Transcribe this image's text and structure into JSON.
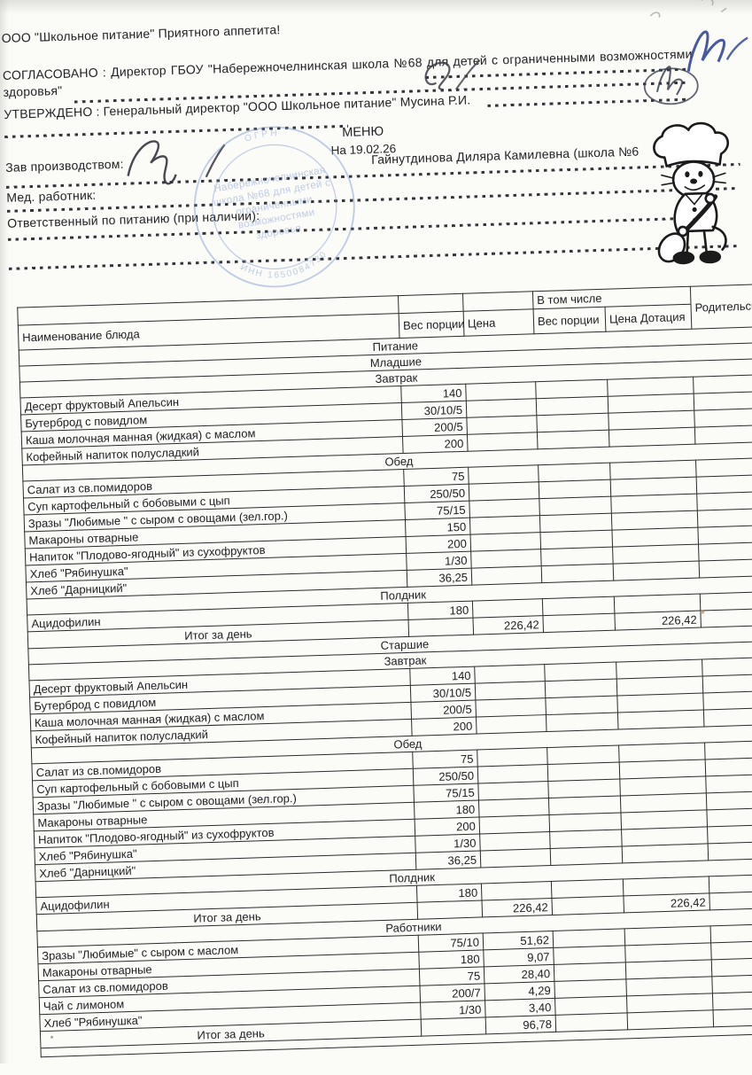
{
  "document": {
    "company_line": "ООО \"Школьное питание\" Приятного аппетита!",
    "agreed_line": "СОГЛАСОВАНО : Директор ГБОУ \"Набережночелнинская школа №68 для детей с ограниченными возможностями здоровья\"",
    "approved_line": "УТВЕРЖДЕНО : Генеральный директор \"ООО Школьное питание\" Мусина Р.И.",
    "menu_title": "МЕНЮ",
    "menu_date": "На 19.02.26",
    "production_manager_label": "Зав производством:",
    "production_manager_name": "Гайнутдинова Диляра Камилевна (школа №6",
    "med_worker_label": "Мед. работник:",
    "responsible_label": "Ответственный по питанию (при наличии):"
  },
  "stamp": {
    "center_lines": [
      "Набережночелнинская",
      "школа №68 для детей с",
      "ограниченными",
      "возможностями",
      "здоровья"
    ],
    "arc_top": "ОГРН",
    "arc_bottom": "ИНН 1650084730",
    "color": "#7d9ad0"
  },
  "colors": {
    "ink_blue": "#32479b",
    "pencil": "#3a3a42"
  },
  "table": {
    "headers": {
      "name": "Наименование блюда",
      "portion": "Вес порции",
      "price": "Цена",
      "including": "В том числе",
      "portion2": "Вес порции",
      "subsidy": "Цена Дотация",
      "parent_fee": "Родительская плата"
    },
    "rows": [
      {
        "type": "section",
        "label": "Питание"
      },
      {
        "type": "section",
        "label": "Младшие"
      },
      {
        "type": "section",
        "label": "Завтрак"
      },
      {
        "type": "dish",
        "name": "Десерт фруктовый Апельсин",
        "weight": "140",
        "price": "",
        "weight2": "",
        "subsidy": "",
        "fee": ""
      },
      {
        "type": "dish",
        "name": "Бутерброд с повидлом",
        "weight": "30/10/5",
        "price": "",
        "weight2": "",
        "subsidy": "",
        "fee": ""
      },
      {
        "type": "dish",
        "name": "Каша молочная манная (жидкая) с маслом",
        "weight": "200/5",
        "price": "",
        "weight2": "",
        "subsidy": "",
        "fee": ""
      },
      {
        "type": "dish",
        "name": "Кофейный напиток полусладкий",
        "weight": "200",
        "price": "",
        "weight2": "",
        "subsidy": "",
        "fee": ""
      },
      {
        "type": "section",
        "label": "Обед"
      },
      {
        "type": "dish",
        "name": "Салат из св.помидоров",
        "weight": "75",
        "price": "",
        "weight2": "",
        "subsidy": "",
        "fee": ""
      },
      {
        "type": "dish",
        "name": "Суп картофельный с бобовыми с цып",
        "weight": "250/50",
        "price": "",
        "weight2": "",
        "subsidy": "",
        "fee": ""
      },
      {
        "type": "dish",
        "name": "Зразы \"Любимые \" с сыром с овощами (зел.гор.)",
        "weight": "75/15",
        "price": "",
        "weight2": "",
        "subsidy": "",
        "fee": ""
      },
      {
        "type": "dish",
        "name": "Макароны отварные",
        "weight": "150",
        "price": "",
        "weight2": "",
        "subsidy": "",
        "fee": ""
      },
      {
        "type": "dish",
        "name": "Напиток \"Плодово-ягодный\" из сухофруктов",
        "weight": "200",
        "price": "",
        "weight2": "",
        "subsidy": "",
        "fee": ""
      },
      {
        "type": "dish",
        "name": "Хлеб \"Рябинушка\"",
        "weight": "1/30",
        "price": "",
        "weight2": "",
        "subsidy": "",
        "fee": ""
      },
      {
        "type": "dish",
        "name": "Хлеб \"Дарницкий\"",
        "weight": "36,25",
        "price": "",
        "weight2": "",
        "subsidy": "",
        "fee": ""
      },
      {
        "type": "section",
        "label": "Полдник"
      },
      {
        "type": "dish",
        "name": "Ацидофилин",
        "weight": "180",
        "price": "",
        "weight2": "",
        "subsidy": "",
        "fee": ""
      },
      {
        "type": "total",
        "name": "Итог за день",
        "weight": "",
        "price": "226,42",
        "weight2": "",
        "subsidy": "226,42",
        "fee": ""
      },
      {
        "type": "section",
        "label": "Старшие"
      },
      {
        "type": "section",
        "label": "Завтрак"
      },
      {
        "type": "dish",
        "name": "Десерт фруктовый Апельсин",
        "weight": "140",
        "price": "",
        "weight2": "",
        "subsidy": "",
        "fee": ""
      },
      {
        "type": "dish",
        "name": "Бутерброд с повидлом",
        "weight": "30/10/5",
        "price": "",
        "weight2": "",
        "subsidy": "",
        "fee": ""
      },
      {
        "type": "dish",
        "name": "Каша молочная манная (жидкая) с маслом",
        "weight": "200/5",
        "price": "",
        "weight2": "",
        "subsidy": "",
        "fee": ""
      },
      {
        "type": "dish",
        "name": "Кофейный напиток полусладкий",
        "weight": "200",
        "price": "",
        "weight2": "",
        "subsidy": "",
        "fee": ""
      },
      {
        "type": "section",
        "label": "Обед"
      },
      {
        "type": "dish",
        "name": "Салат из св.помидоров",
        "weight": "75",
        "price": "",
        "weight2": "",
        "subsidy": "",
        "fee": ""
      },
      {
        "type": "dish",
        "name": "Суп картофельный с бобовыми с цып",
        "weight": "250/50",
        "price": "",
        "weight2": "",
        "subsidy": "",
        "fee": ""
      },
      {
        "type": "dish",
        "name": "Зразы \"Любимые \" с сыром с овощами (зел.гор.)",
        "weight": "75/15",
        "price": "",
        "weight2": "",
        "subsidy": "",
        "fee": ""
      },
      {
        "type": "dish",
        "name": "Макароны отварные",
        "weight": "180",
        "price": "",
        "weight2": "",
        "subsidy": "",
        "fee": ""
      },
      {
        "type": "dish",
        "name": "Напиток \"Плодово-ягодный\" из сухофруктов",
        "weight": "200",
        "price": "",
        "weight2": "",
        "subsidy": "",
        "fee": ""
      },
      {
        "type": "dish",
        "name": "Хлеб \"Рябинушка\"",
        "weight": "1/30",
        "price": "",
        "weight2": "",
        "subsidy": "",
        "fee": ""
      },
      {
        "type": "dish",
        "name": "Хлеб \"Дарницкий\"",
        "weight": "36,25",
        "price": "",
        "weight2": "",
        "subsidy": "",
        "fee": ""
      },
      {
        "type": "section",
        "label": "Полдник"
      },
      {
        "type": "dish",
        "name": "Ацидофилин",
        "weight": "180",
        "price": "",
        "weight2": "",
        "subsidy": "",
        "fee": ""
      },
      {
        "type": "total",
        "name": "Итог за день",
        "weight": "",
        "price": "226,42",
        "weight2": "",
        "subsidy": "226,42",
        "fee": ""
      },
      {
        "type": "section",
        "label": "Работники"
      },
      {
        "type": "dish",
        "name": "Зразы \"Любимые\" с сыром с маслом",
        "weight": "75/10",
        "price": "51,62",
        "weight2": "",
        "subsidy": "",
        "fee": ""
      },
      {
        "type": "dish",
        "name": "Макароны отварные",
        "weight": "180",
        "price": "9,07",
        "weight2": "",
        "subsidy": "",
        "fee": ""
      },
      {
        "type": "dish",
        "name": "Салат из св.помидоров",
        "weight": "75",
        "price": "28,40",
        "weight2": "",
        "subsidy": "",
        "fee": ""
      },
      {
        "type": "dish",
        "name": "Чай с лимоном",
        "weight": "200/7",
        "price": "4,29",
        "weight2": "",
        "subsidy": "",
        "fee": ""
      },
      {
        "type": "dish",
        "name": "Хлеб \"Рябинушка\"",
        "weight": "1/30",
        "price": "3,40",
        "weight2": "",
        "subsidy": "",
        "fee": ""
      },
      {
        "type": "total",
        "name": "Итог за день",
        "weight": "",
        "price": "96,78",
        "weight2": "",
        "subsidy": "",
        "fee": ""
      },
      {
        "type": "spacer"
      }
    ]
  }
}
